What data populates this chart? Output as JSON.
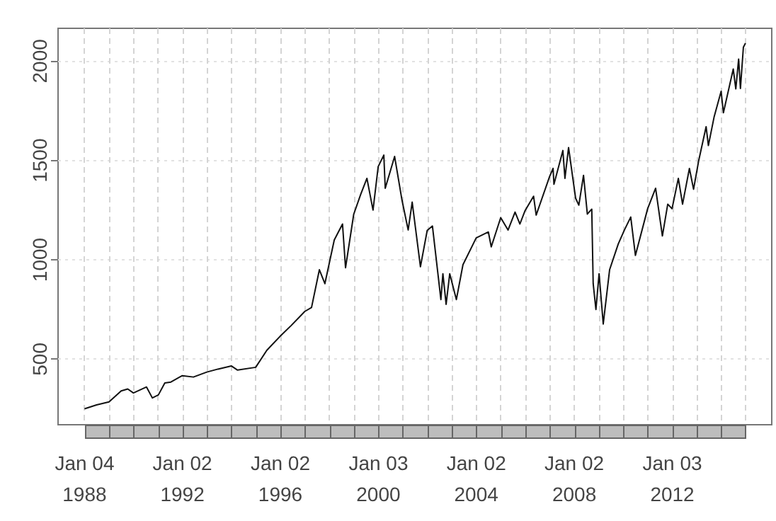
{
  "chart_data": {
    "type": "line",
    "x": [
      "1988-01-04",
      "1988-07-01",
      "1989-01-03",
      "1989-07-03",
      "1989-10-09",
      "1990-01-02",
      "1990-07-16",
      "1990-10-11",
      "1991-01-09",
      "1991-04-15",
      "1991-07-15",
      "1991-12-31",
      "1992-06-15",
      "1992-12-31",
      "1993-06-15",
      "1993-12-31",
      "1994-04-04",
      "1994-12-30",
      "1995-06-15",
      "1995-12-29",
      "1996-06-14",
      "1996-12-31",
      "1997-04-11",
      "1997-08-06",
      "1997-10-27",
      "1998-03-16",
      "1998-07-17",
      "1998-08-31",
      "1998-12-31",
      "1999-04-15",
      "1999-07-16",
      "1999-10-15",
      "1999-12-31",
      "2000-03-24",
      "2000-04-14",
      "2000-09-01",
      "2000-12-20",
      "2001-03-22",
      "2001-05-21",
      "2001-09-21",
      "2001-12-31",
      "2002-03-19",
      "2002-07-23",
      "2002-08-22",
      "2002-10-09",
      "2002-12-02",
      "2003-03-11",
      "2003-06-17",
      "2003-12-31",
      "2004-06-30",
      "2004-08-12",
      "2004-12-31",
      "2005-04-20",
      "2005-08-02",
      "2005-10-13",
      "2005-12-30",
      "2006-05-05",
      "2006-06-13",
      "2006-12-29",
      "2007-02-20",
      "2007-03-05",
      "2007-07-16",
      "2007-08-16",
      "2007-10-09",
      "2008-01-22",
      "2008-03-10",
      "2008-05-19",
      "2008-07-15",
      "2008-09-19",
      "2008-10-10",
      "2008-11-20",
      "2009-01-06",
      "2009-03-09",
      "2009-06-12",
      "2009-10-19",
      "2010-01-19",
      "2010-04-23",
      "2010-07-02",
      "2010-12-31",
      "2011-04-29",
      "2011-08-08",
      "2011-10-27",
      "2011-12-30",
      "2012-04-02",
      "2012-06-04",
      "2012-09-14",
      "2012-11-15",
      "2013-01-31",
      "2013-05-21",
      "2013-06-24",
      "2013-09-18",
      "2013-12-31",
      "2014-02-03",
      "2014-06-30",
      "2014-08-07",
      "2014-09-18",
      "2014-10-15",
      "2014-11-28",
      "2014-12-29"
    ],
    "series": [
      {
        "color": "#111111",
        "values": [
          250,
          270,
          285,
          340,
          350,
          330,
          360,
          305,
          320,
          380,
          385,
          417,
          410,
          435,
          450,
          466,
          445,
          459,
          545,
          615,
          670,
          740,
          760,
          950,
          880,
          1100,
          1180,
          960,
          1229,
          1330,
          1410,
          1250,
          1469,
          1527,
          1360,
          1520,
          1300,
          1150,
          1290,
          965,
          1148,
          1170,
          800,
          930,
          776,
          930,
          800,
          975,
          1110,
          1140,
          1065,
          1212,
          1150,
          1240,
          1180,
          1248,
          1320,
          1225,
          1418,
          1460,
          1380,
          1550,
          1410,
          1565,
          1310,
          1275,
          1425,
          1230,
          1255,
          880,
          750,
          930,
          677,
          950,
          1080,
          1150,
          1215,
          1022,
          1257,
          1360,
          1120,
          1280,
          1257,
          1410,
          1280,
          1460,
          1355,
          1500,
          1670,
          1575,
          1720,
          1848,
          1740,
          1960,
          1860,
          2010,
          1862,
          2070,
          2090
        ]
      }
    ],
    "xlim": [
      "1986-12-05",
      "2016-01-25"
    ],
    "xticks": [
      {
        "value": "1988-01-04",
        "label": "Jan 04\n1988"
      },
      {
        "value": "1989-01-03",
        "label": null
      },
      {
        "value": "1990-01-02",
        "label": null
      },
      {
        "value": "1991-01-02",
        "label": null
      },
      {
        "value": "1992-01-02",
        "label": "Jan 02\n1992"
      },
      {
        "value": "1993-01-04",
        "label": null
      },
      {
        "value": "1994-01-03",
        "label": null
      },
      {
        "value": "1995-01-03",
        "label": null
      },
      {
        "value": "1996-01-02",
        "label": "Jan 02\n1996"
      },
      {
        "value": "1997-01-02",
        "label": null
      },
      {
        "value": "1998-01-02",
        "label": null
      },
      {
        "value": "1999-01-04",
        "label": null
      },
      {
        "value": "2000-01-03",
        "label": "Jan 03\n2000"
      },
      {
        "value": "2001-01-02",
        "label": null
      },
      {
        "value": "2002-01-02",
        "label": null
      },
      {
        "value": "2003-01-02",
        "label": null
      },
      {
        "value": "2004-01-02",
        "label": "Jan 02\n2004"
      },
      {
        "value": "2005-01-03",
        "label": null
      },
      {
        "value": "2006-01-03",
        "label": null
      },
      {
        "value": "2007-01-03",
        "label": null
      },
      {
        "value": "2008-01-02",
        "label": "Jan 02\n2008"
      },
      {
        "value": "2009-01-02",
        "label": null
      },
      {
        "value": "2010-01-04",
        "label": null
      },
      {
        "value": "2011-01-03",
        "label": null
      },
      {
        "value": "2012-01-03",
        "label": "Jan 03\n2012"
      },
      {
        "value": "2013-01-02",
        "label": null
      },
      {
        "value": "2014-01-02",
        "label": null
      },
      {
        "value": "2015-01-02",
        "label": null
      }
    ],
    "ylim": [
      170,
      2165
    ],
    "yticks": [
      500,
      1000,
      1500,
      2000
    ],
    "grid": true,
    "marker": "none",
    "line_style": "solid"
  }
}
